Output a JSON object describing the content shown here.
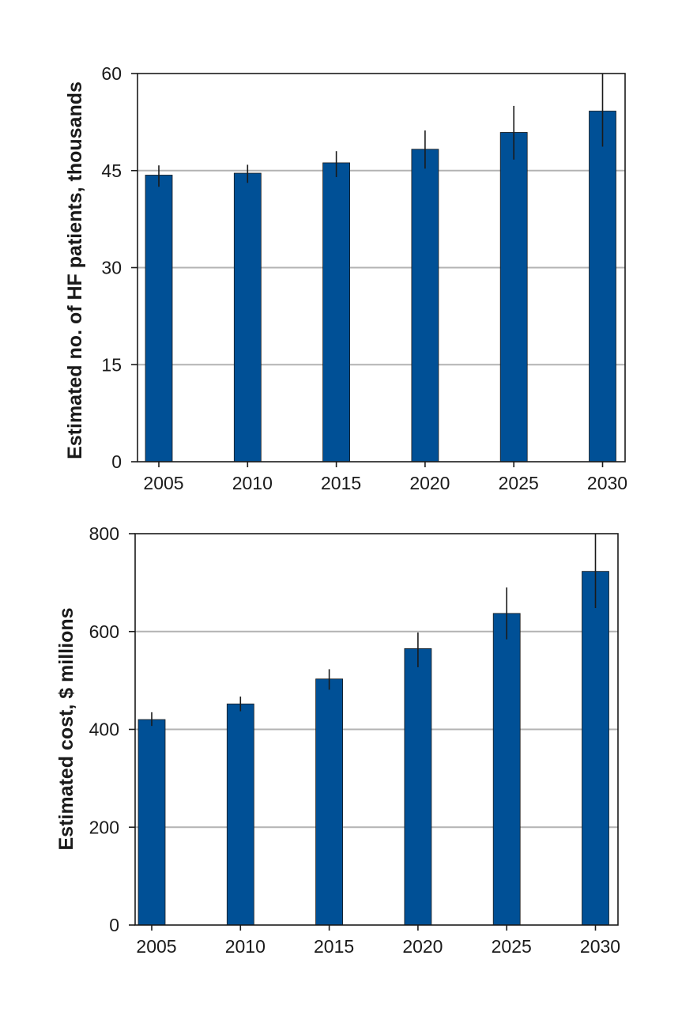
{
  "chart_data": [
    {
      "type": "bar",
      "categories": [
        "2005",
        "2010",
        "2015",
        "2020",
        "2025",
        "2030"
      ],
      "values": [
        44.3,
        44.6,
        46.2,
        48.3,
        50.9,
        54.2
      ],
      "error_low": [
        42.5,
        43.1,
        44.0,
        45.3,
        46.7,
        48.7
      ],
      "error_high": [
        45.8,
        45.9,
        48.0,
        51.2,
        55.0,
        60.0
      ],
      "ylabel": "Estimated no. of HF patients, thousands",
      "ylim": [
        0,
        60
      ],
      "yticks": [
        "0",
        "15",
        "30",
        "45",
        "60"
      ],
      "grid": true,
      "bar_color": "#005096"
    },
    {
      "type": "bar",
      "categories": [
        "2005",
        "2010",
        "2015",
        "2020",
        "2025",
        "2030"
      ],
      "values": [
        420,
        452,
        503,
        565,
        637,
        723
      ],
      "error_low": [
        407,
        437,
        481,
        527,
        584,
        648
      ],
      "error_high": [
        435,
        467,
        523,
        598,
        690,
        800
      ],
      "ylabel": "Estimated cost, $ millions",
      "ylim": [
        0,
        800
      ],
      "yticks": [
        "0",
        "200",
        "400",
        "600",
        "800"
      ],
      "grid": true,
      "bar_color": "#005096"
    }
  ]
}
